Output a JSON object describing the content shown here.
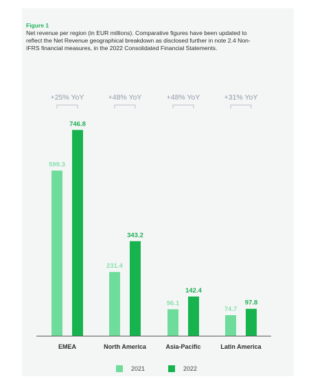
{
  "figure_label": "Figure 1",
  "caption": "Net revenue per region (in EUR millions). Comparative figures have been updated to reflect the Net Revenue geographical breakdown as disclosed further in note 2.4 Non-IFRS financial measures, in the 2022 Consolidated Financial Statements.",
  "colors": {
    "series_2021": "#6edc9a",
    "series_2022": "#17b34f",
    "label_2021": "#8adfae",
    "label_2022": "#1fae55",
    "annotation": "#8f9aa6"
  },
  "chart_data": {
    "type": "bar",
    "title": "",
    "xlabel": "",
    "ylabel": "",
    "categories": [
      "EMEA",
      "North America",
      "Asia-Pacific",
      "Latin America"
    ],
    "series": [
      {
        "name": "2021",
        "values": [
          599.3,
          231.4,
          96.1,
          74.7
        ]
      },
      {
        "name": "2022",
        "values": [
          746.8,
          343.2,
          142.4,
          97.8
        ]
      }
    ],
    "value_labels": {
      "2021": [
        "599.3",
        "231.4",
        "96.1",
        "74.7"
      ],
      "2022": [
        "746.8",
        "343.2",
        "142.4",
        "97.8"
      ]
    },
    "annotations": [
      "+25% YoY",
      "+48% YoY",
      "+48% YoY",
      "+31% YoY"
    ],
    "ylim": [
      0,
      750
    ],
    "grid": false,
    "legend": "bottom-center"
  }
}
